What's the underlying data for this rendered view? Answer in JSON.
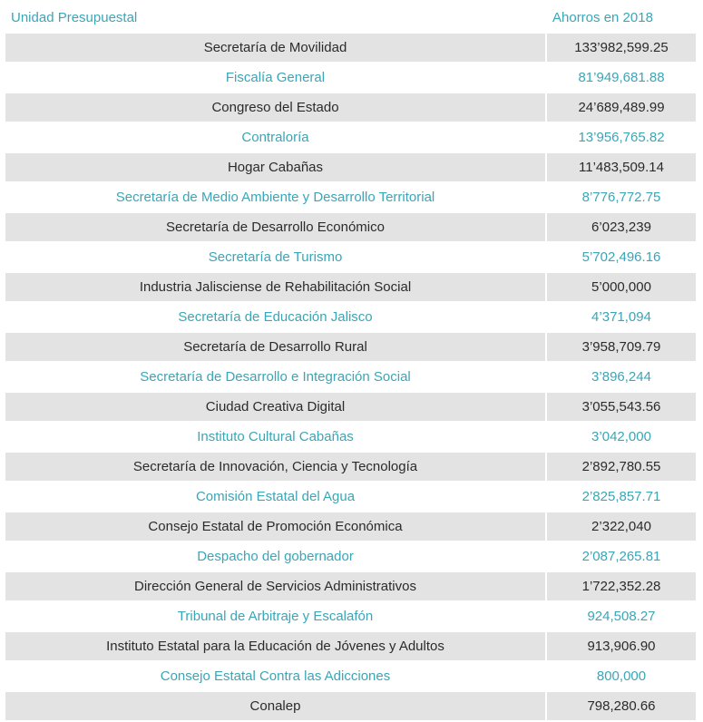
{
  "header": {
    "unit_label": "Unidad Presupuestal",
    "amount_label": "Ahorros en 2018"
  },
  "colors": {
    "accent": "#3aa6b6",
    "shaded_row": "#e3e3e3",
    "dark_text": "#2b2b2b"
  },
  "rows": [
    {
      "unit": "Secretaría de Movilidad",
      "amount": "133’982,599.25"
    },
    {
      "unit": "Fiscalía General",
      "amount": "81’949,681.88"
    },
    {
      "unit": "Congreso del Estado",
      "amount": "24’689,489.99"
    },
    {
      "unit": "Contraloría",
      "amount": "13’956,765.82"
    },
    {
      "unit": "Hogar Cabañas",
      "amount": "11’483,509.14"
    },
    {
      "unit": "Secretaría de Medio Ambiente y Desarrollo Territorial",
      "amount": "8’776,772.75"
    },
    {
      "unit": "Secretaría de Desarrollo Económico",
      "amount": "6’023,239"
    },
    {
      "unit": "Secretaría de Turismo",
      "amount": "5’702,496.16"
    },
    {
      "unit": "Industria Jalisciense de Rehabilitación Social",
      "amount": "5’000,000"
    },
    {
      "unit": "Secretaría de Educación Jalisco",
      "amount": "4’371,094"
    },
    {
      "unit": "Secretaría de Desarrollo Rural",
      "amount": "3’958,709.79"
    },
    {
      "unit": "Secretaría de Desarrollo e Integración Social",
      "amount": "3’896,244"
    },
    {
      "unit": "Ciudad Creativa Digital",
      "amount": "3’055,543.56"
    },
    {
      "unit": "Instituto Cultural Cabañas",
      "amount": "3’042,000"
    },
    {
      "unit": "Secretaría de Innovación, Ciencia y Tecnología",
      "amount": "2’892,780.55"
    },
    {
      "unit": "Comisión Estatal del Agua",
      "amount": "2’825,857.71"
    },
    {
      "unit": "Consejo Estatal de Promoción Económica",
      "amount": "2’322,040"
    },
    {
      "unit": "Despacho del gobernador",
      "amount": "2’087,265.81"
    },
    {
      "unit": "Dirección General de Servicios Administrativos",
      "amount": "1’722,352.28"
    },
    {
      "unit": "Tribunal de Arbitraje y Escalafón",
      "amount": "924,508.27"
    },
    {
      "unit": "Instituto Estatal para la Educación de Jóvenes y Adultos",
      "amount": "913,906.90"
    },
    {
      "unit": "Consejo Estatal Contra las Adicciones",
      "amount": "800,000"
    },
    {
      "unit": "Conalep",
      "amount": "798,280.66"
    }
  ]
}
